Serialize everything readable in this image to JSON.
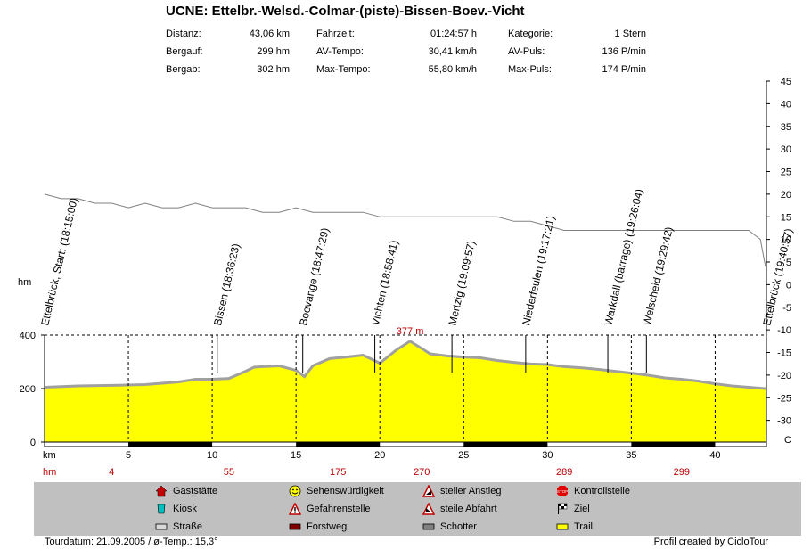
{
  "title": "UCNE: Ettelbr.-Welsd.-Colmar-(piste)-Bissen-Boev.-Vicht",
  "stats": [
    {
      "label": "Distanz:",
      "value": "43,06 km"
    },
    {
      "label": "Bergauf:",
      "value": "299 hm"
    },
    {
      "label": "Bergab:",
      "value": "302 hm"
    },
    {
      "label": "Fahrzeit:",
      "value": "01:24:57 h"
    },
    {
      "label": "AV-Tempo:",
      "value": "30,41 km/h"
    },
    {
      "label": "Max-Tempo:",
      "value": "55,80 km/h"
    },
    {
      "label": "Kategorie:",
      "value": "1 Stern"
    },
    {
      "label": "AV-Puls:",
      "value": "136 P/min"
    },
    {
      "label": "Max-Puls:",
      "value": "174 P/min"
    }
  ],
  "chart_data": {
    "type": "area",
    "xlabel": "km",
    "ylabel": "hm",
    "xlim": [
      0,
      43.06
    ],
    "ylim": [
      0,
      400
    ],
    "x_ticks": [
      5,
      10,
      15,
      20,
      25,
      30,
      35,
      40
    ],
    "y_ticks": [
      0,
      200,
      400
    ],
    "max_label": "377 m",
    "max_km": 21.8,
    "hm_row_label": "hm",
    "hm_row": [
      {
        "km": 4,
        "value": "4"
      },
      {
        "km": 11,
        "value": "55"
      },
      {
        "km": 17.5,
        "value": "175"
      },
      {
        "km": 22.5,
        "value": "270"
      },
      {
        "km": 31,
        "value": "289"
      },
      {
        "km": 38,
        "value": "299"
      }
    ],
    "elevation": {
      "name": "Höhe",
      "x": [
        0,
        2,
        4,
        6,
        8,
        9,
        10,
        11,
        12,
        12.5,
        13,
        14,
        15,
        15.5,
        16,
        17,
        18,
        19,
        19.5,
        20,
        21,
        21.8,
        22.5,
        23,
        24,
        25,
        26,
        27,
        28,
        29,
        30,
        31,
        32,
        33,
        34,
        35,
        36,
        37,
        38,
        39,
        40,
        41,
        42,
        43
      ],
      "y": [
        205,
        210,
        212,
        215,
        225,
        235,
        235,
        238,
        265,
        280,
        282,
        285,
        268,
        245,
        285,
        312,
        318,
        325,
        310,
        295,
        345,
        377,
        350,
        330,
        322,
        318,
        315,
        305,
        298,
        292,
        290,
        282,
        278,
        272,
        265,
        258,
        250,
        240,
        235,
        228,
        218,
        210,
        205,
        200
      ]
    },
    "temperature": {
      "name": "C",
      "ylim": [
        -35,
        45
      ],
      "y_ticks": [
        -30,
        -25,
        -20,
        -15,
        -10,
        -5,
        0,
        5,
        10,
        15,
        20,
        25,
        30,
        35,
        40,
        45
      ],
      "x": [
        0,
        1,
        2,
        3,
        4,
        5,
        6,
        7,
        8,
        9,
        10,
        11,
        12,
        13,
        14,
        15,
        16,
        17,
        18,
        19,
        20,
        21,
        22,
        23,
        24,
        25,
        26,
        27,
        28,
        29,
        30,
        31,
        32,
        33,
        34,
        35,
        36,
        37,
        38,
        39,
        40,
        41,
        42,
        42.7,
        43
      ],
      "y": [
        20,
        19,
        19,
        18,
        18,
        17,
        18,
        17,
        17,
        18,
        17,
        17,
        17,
        16,
        16,
        17,
        16,
        16,
        16,
        16,
        15,
        15,
        15,
        15,
        15,
        15,
        15,
        15,
        14,
        14,
        13,
        12,
        12,
        12,
        12,
        12,
        12,
        12,
        12,
        12,
        12,
        12,
        12,
        10,
        4
      ]
    },
    "waypoints": [
      {
        "km": 0,
        "label": "Ettelbrück, Start: (18:15:00)"
      },
      {
        "km": 10.3,
        "label": "Bissen (18:36:23)"
      },
      {
        "km": 15.4,
        "label": "Boevange (18:47:29)"
      },
      {
        "km": 19.7,
        "label": "Vichten (18:58:41)"
      },
      {
        "km": 24.3,
        "label": "Mertzig (19:09:57)"
      },
      {
        "km": 28.7,
        "label": "Niederfeulen (19:17:21)"
      },
      {
        "km": 33.6,
        "label": "Warkdall (barrage) (19:26:04)"
      },
      {
        "km": 35.9,
        "label": "Welscheid (19:29:42)"
      },
      {
        "km": 43.06,
        "label": "Ettelbrück (19:40:57)"
      }
    ],
    "track_segments": [
      {
        "from": 5,
        "to": 10,
        "type": "Forstweg"
      },
      {
        "from": 15,
        "to": 20,
        "type": "Forstweg"
      },
      {
        "from": 25,
        "to": 30,
        "type": "Forstweg"
      },
      {
        "from": 35,
        "to": 40,
        "type": "Forstweg"
      }
    ],
    "colors": {
      "fill": "#ffff00",
      "outline": "#a0a0a0",
      "temp_line": "#808080",
      "hm_row": "#c00000",
      "max_label": "#c00000"
    }
  },
  "legend": [
    {
      "icon": "gaststaette-icon",
      "label": "Gaststätte"
    },
    {
      "icon": "sehenswuerdigkeit-icon",
      "label": "Sehenswürdigkeit"
    },
    {
      "icon": "steiler-anstieg-icon",
      "label": "steiler Anstieg"
    },
    {
      "icon": "kontrollstelle-icon",
      "label": "Kontrollstelle"
    },
    {
      "icon": "kiosk-icon",
      "label": "Kiosk"
    },
    {
      "icon": "gefahrenstelle-icon",
      "label": "Gefahrenstelle"
    },
    {
      "icon": "steile-abfahrt-icon",
      "label": "steile Abfahrt"
    },
    {
      "icon": "ziel-icon",
      "label": "Ziel"
    },
    {
      "icon": "strasse-icon",
      "label": "Straße"
    },
    {
      "icon": "forstweg-icon",
      "label": "Forstweg"
    },
    {
      "icon": "schotter-icon",
      "label": "Schotter"
    },
    {
      "icon": "trail-icon",
      "label": "Trail"
    }
  ],
  "footer": {
    "left": "Tourdatum: 21.09.2005  /  ø-Temp.: 15,3°",
    "right": "Profil created by CicloTour"
  }
}
